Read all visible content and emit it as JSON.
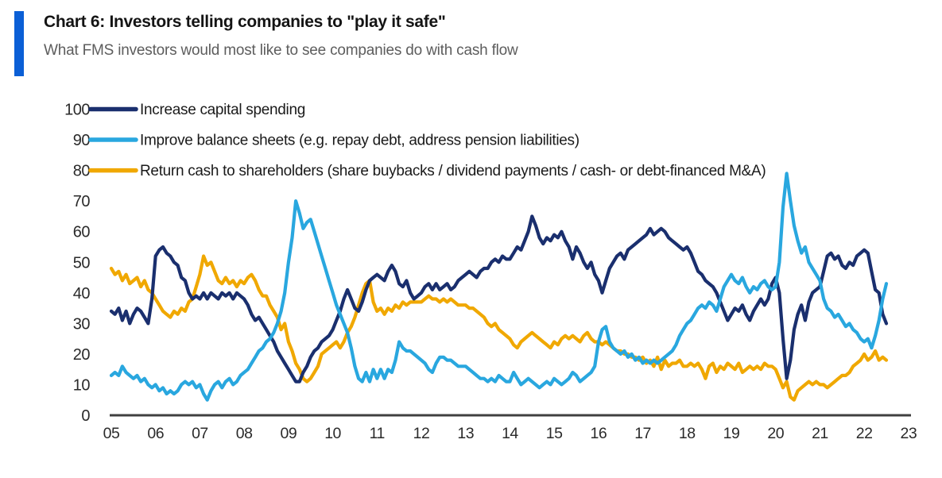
{
  "header": {
    "title": "Chart 6: Investors telling companies to \"play it safe\"",
    "subtitle": "What FMS investors would most like to see companies do with cash flow",
    "accent_color": "#0b5fd6"
  },
  "chart_data": {
    "type": "line",
    "title": "Chart 6: Investors telling companies to \"play it safe\"",
    "subtitle": "What FMS investors would most like to see companies do with cash flow",
    "xlabel": "",
    "ylabel": "",
    "legend_position": "top-left-inside",
    "grid": false,
    "axis_color": "#3f3f3f",
    "x_axis": {
      "tick_labels": [
        "05",
        "06",
        "07",
        "08",
        "09",
        "10",
        "11",
        "12",
        "13",
        "14",
        "15",
        "16",
        "17",
        "18",
        "19",
        "20",
        "21",
        "22",
        "23"
      ],
      "tick_years": [
        2005,
        2006,
        2007,
        2008,
        2009,
        2010,
        2011,
        2012,
        2013,
        2014,
        2015,
        2016,
        2017,
        2018,
        2019,
        2020,
        2021,
        2022,
        2023
      ],
      "range": [
        2005.0,
        2023.3
      ]
    },
    "y_axis": {
      "min": 0,
      "max": 100,
      "tick_step": 10,
      "tick_labels": [
        "0",
        "10",
        "20",
        "30",
        "40",
        "50",
        "60",
        "70",
        "80",
        "90",
        "100"
      ]
    },
    "sampling": {
      "start_year": 2005.0,
      "points_per_year": 12
    },
    "draw_order": [
      2,
      0,
      1
    ],
    "series": [
      {
        "id": "increase-capital-spending",
        "name": "Increase capital spending",
        "color": "#1a2f6e",
        "values": [
          34,
          33,
          35,
          31,
          34,
          30,
          33,
          35,
          34,
          32,
          30,
          38,
          52,
          54,
          55,
          53,
          52,
          50,
          49,
          45,
          44,
          40,
          38,
          39,
          38,
          40,
          38,
          40,
          39,
          38,
          40,
          39,
          40,
          38,
          40,
          39,
          38,
          36,
          33,
          31,
          32,
          30,
          28,
          26,
          24,
          21,
          19,
          17,
          15,
          13,
          11,
          11,
          14,
          16,
          19,
          21,
          22,
          24,
          25,
          26,
          28,
          31,
          34,
          38,
          41,
          38,
          35,
          34,
          37,
          41,
          44,
          45,
          46,
          45,
          44,
          47,
          49,
          47,
          43,
          42,
          44,
          40,
          38,
          39,
          40,
          42,
          43,
          41,
          43,
          41,
          42,
          43,
          41,
          42,
          44,
          45,
          46,
          47,
          46,
          45,
          47,
          48,
          48,
          50,
          51,
          50,
          52,
          51,
          51,
          53,
          55,
          54,
          57,
          60,
          65,
          62,
          58,
          56,
          58,
          57,
          59,
          58,
          60,
          57,
          55,
          51,
          55,
          53,
          50,
          48,
          50,
          46,
          44,
          40,
          44,
          48,
          50,
          52,
          53,
          51,
          54,
          55,
          56,
          57,
          58,
          59,
          61,
          59,
          60,
          61,
          60,
          58,
          57,
          56,
          55,
          54,
          55,
          53,
          50,
          47,
          46,
          44,
          43,
          42,
          40,
          37,
          34,
          31,
          33,
          35,
          34,
          36,
          33,
          31,
          34,
          36,
          38,
          36,
          38,
          43,
          45,
          40,
          25,
          12,
          18,
          28,
          33,
          36,
          31,
          37,
          40,
          41,
          42,
          47,
          52,
          53,
          51,
          52,
          49,
          48,
          50,
          49,
          52,
          53,
          54,
          53,
          47,
          41,
          40,
          33,
          30
        ]
      },
      {
        "id": "improve-balance-sheets",
        "name": "Improve balance sheets (e.g. repay debt, address pension liabilities)",
        "color": "#29a7df",
        "values": [
          13,
          14,
          13,
          16,
          14,
          13,
          12,
          13,
          11,
          12,
          10,
          9,
          10,
          8,
          9,
          7,
          8,
          7,
          8,
          10,
          11,
          10,
          11,
          9,
          10,
          7,
          5,
          8,
          10,
          11,
          9,
          11,
          12,
          10,
          11,
          13,
          14,
          15,
          17,
          19,
          21,
          22,
          24,
          25,
          27,
          30,
          34,
          40,
          50,
          58,
          70,
          66,
          61,
          63,
          64,
          60,
          56,
          52,
          48,
          44,
          40,
          36,
          33,
          30,
          27,
          22,
          16,
          12,
          11,
          14,
          11,
          15,
          12,
          15,
          12,
          15,
          14,
          18,
          24,
          22,
          21,
          21,
          20,
          19,
          18,
          17,
          15,
          14,
          17,
          19,
          19,
          18,
          18,
          17,
          16,
          16,
          16,
          15,
          14,
          13,
          12,
          12,
          11,
          12,
          11,
          13,
          12,
          11,
          11,
          14,
          12,
          10,
          11,
          12,
          11,
          10,
          9,
          10,
          11,
          10,
          12,
          11,
          10,
          11,
          12,
          14,
          13,
          11,
          12,
          13,
          14,
          16,
          24,
          28,
          29,
          24,
          22,
          21,
          20,
          21,
          19,
          20,
          18,
          19,
          17,
          18,
          17,
          18,
          17,
          18,
          19,
          20,
          21,
          23,
          26,
          28,
          30,
          31,
          33,
          35,
          36,
          35,
          37,
          36,
          34,
          38,
          42,
          44,
          46,
          44,
          43,
          45,
          42,
          40,
          42,
          41,
          43,
          44,
          42,
          41,
          42,
          50,
          68,
          79,
          70,
          62,
          57,
          53,
          55,
          50,
          48,
          46,
          44,
          38,
          35,
          34,
          32,
          33,
          31,
          29,
          30,
          28,
          27,
          25,
          24,
          25,
          22,
          26,
          31,
          38,
          43
        ]
      },
      {
        "id": "return-cash-to-shareholders",
        "name": "Return cash to shareholders (share buybacks / dividend payments / cash- or debt-financed M&A)",
        "color": "#f0a800",
        "values": [
          48,
          46,
          47,
          44,
          46,
          43,
          44,
          45,
          42,
          44,
          41,
          40,
          38,
          36,
          34,
          33,
          32,
          34,
          33,
          35,
          34,
          37,
          38,
          42,
          46,
          52,
          49,
          50,
          47,
          44,
          43,
          45,
          43,
          44,
          42,
          44,
          43,
          45,
          46,
          44,
          41,
          39,
          39,
          36,
          34,
          32,
          28,
          30,
          24,
          21,
          17,
          15,
          12,
          11,
          12,
          14,
          16,
          20,
          21,
          22,
          23,
          24,
          22,
          24,
          27,
          29,
          32,
          36,
          40,
          43,
          44,
          37,
          34,
          35,
          33,
          35,
          34,
          36,
          35,
          37,
          36,
          37,
          37,
          37,
          37,
          38,
          39,
          38,
          38,
          37,
          38,
          37,
          38,
          37,
          36,
          36,
          36,
          35,
          35,
          34,
          33,
          32,
          30,
          29,
          30,
          28,
          27,
          26,
          25,
          23,
          22,
          24,
          25,
          26,
          27,
          26,
          25,
          24,
          23,
          22,
          24,
          23,
          25,
          26,
          25,
          26,
          25,
          24,
          26,
          27,
          25,
          24,
          24,
          23,
          24,
          23,
          22,
          21,
          21,
          20,
          20,
          19,
          19,
          18,
          19,
          17,
          18,
          16,
          19,
          15,
          18,
          16,
          17,
          17,
          18,
          16,
          16,
          17,
          16,
          17,
          15,
          12,
          16,
          17,
          14,
          16,
          15,
          17,
          16,
          15,
          17,
          14,
          15,
          16,
          15,
          16,
          15,
          17,
          16,
          16,
          15,
          12,
          9,
          11,
          6,
          5,
          8,
          9,
          10,
          11,
          10,
          11,
          10,
          10,
          9,
          10,
          11,
          12,
          13,
          13,
          14,
          16,
          17,
          18,
          20,
          18,
          19,
          21,
          18,
          19,
          18
        ]
      }
    ]
  }
}
